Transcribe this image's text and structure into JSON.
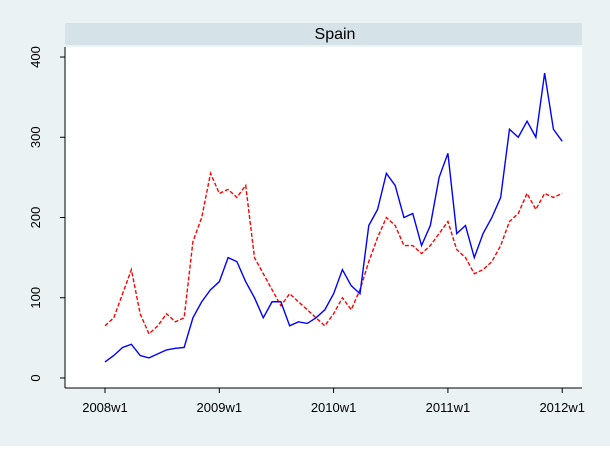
{
  "chart_data": {
    "type": "line",
    "title": "Spain",
    "x": [
      2496,
      2500,
      2504,
      2508,
      2512,
      2516,
      2520,
      2524,
      2528,
      2532,
      2536,
      2540,
      2544,
      2548,
      2552,
      2556,
      2560,
      2564,
      2568,
      2572,
      2576,
      2580,
      2584,
      2588,
      2592,
      2596,
      2600,
      2604,
      2608,
      2612,
      2616,
      2620,
      2624,
      2628,
      2632,
      2636,
      2640,
      2644,
      2648,
      2652,
      2656,
      2660,
      2664,
      2668,
      2672,
      2676,
      2680,
      2684,
      2688,
      2692,
      2696,
      2700,
      2704
    ],
    "series": [
      {
        "name": "blue",
        "color": "#0000ff",
        "dash": false,
        "values": [
          20,
          28,
          38,
          42,
          28,
          25,
          30,
          35,
          37,
          38,
          75,
          95,
          110,
          120,
          150,
          145,
          120,
          100,
          75,
          95,
          95,
          65,
          70,
          68,
          75,
          85,
          105,
          135,
          115,
          105,
          190,
          210,
          255,
          240,
          200,
          205,
          165,
          190,
          250,
          280,
          180,
          190,
          150,
          180,
          200,
          225,
          310,
          300,
          320,
          300,
          380,
          310,
          295
        ]
      },
      {
        "name": "red",
        "color": "#ff0000",
        "dash": true,
        "values": [
          65,
          75,
          105,
          135,
          80,
          55,
          65,
          80,
          70,
          75,
          170,
          200,
          255,
          230,
          235,
          225,
          240,
          150,
          130,
          110,
          90,
          105,
          95,
          85,
          75,
          65,
          80,
          100,
          85,
          110,
          145,
          175,
          200,
          190,
          165,
          165,
          155,
          165,
          180,
          195,
          160,
          150,
          130,
          135,
          145,
          165,
          195,
          205,
          230,
          210,
          230,
          225,
          230
        ]
      }
    ],
    "xlim": [
      2477.8,
      2713
    ],
    "ylim": [
      -12.5,
      412.5
    ],
    "xticks": [
      {
        "value": 2496,
        "label": "2008w1"
      },
      {
        "value": 2548,
        "label": "2009w1"
      },
      {
        "value": 2600,
        "label": "2010w1"
      },
      {
        "value": 2652,
        "label": "2011w1"
      },
      {
        "value": 2704,
        "label": "2012w1"
      }
    ],
    "yticks": [
      0,
      100,
      200,
      300,
      400
    ],
    "grid": false
  }
}
